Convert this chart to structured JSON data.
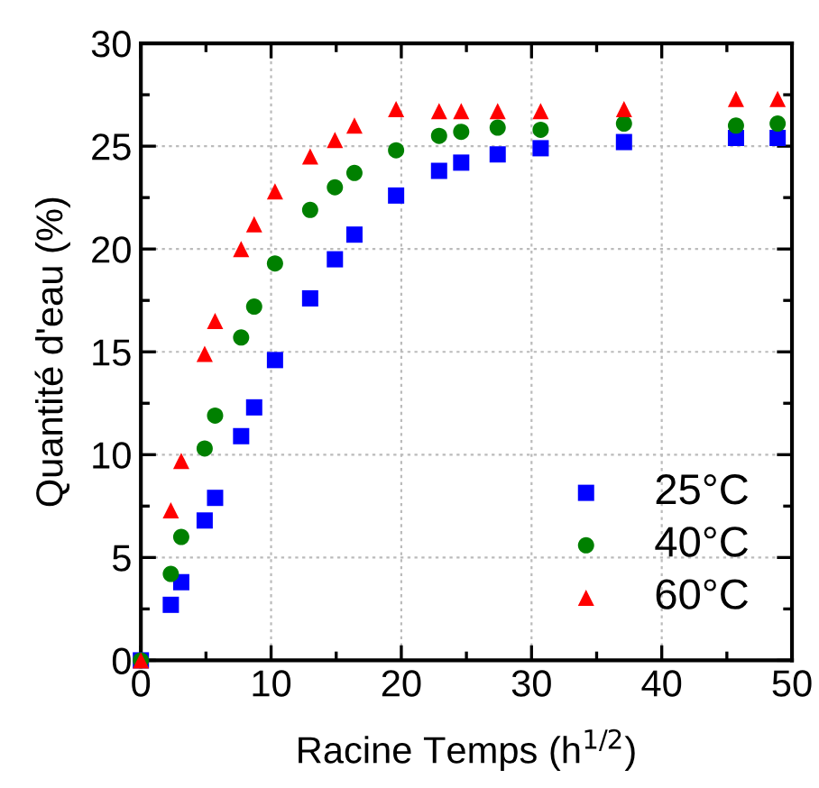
{
  "chart_data": {
    "type": "scatter",
    "xlabel": "Racine Temps (h$^{1/2}$)",
    "ylabel": "Quantité d'eau (%)",
    "x": [
      0,
      2.3,
      3.1,
      4.9,
      5.7,
      7.7,
      8.7,
      10.3,
      13.0,
      14.9,
      16.4,
      19.6,
      22.9,
      24.6,
      27.4,
      30.7,
      37.1,
      45.7,
      48.9
    ],
    "series": [
      {
        "name": "25°C",
        "color": "#0000ff",
        "marker": "square",
        "values": [
          0,
          2.7,
          3.8,
          6.8,
          7.9,
          10.9,
          12.3,
          14.6,
          17.6,
          19.5,
          20.7,
          22.6,
          23.8,
          24.2,
          24.6,
          24.9,
          25.2,
          25.4,
          25.4
        ]
      },
      {
        "name": "40°C",
        "color": "#008000",
        "marker": "circle",
        "values": [
          0,
          4.2,
          6.0,
          10.3,
          11.9,
          15.7,
          17.2,
          19.3,
          21.9,
          23.0,
          23.7,
          24.8,
          25.5,
          25.7,
          25.9,
          25.8,
          26.1,
          26.0,
          26.1
        ]
      },
      {
        "name": "60°C",
        "color": "#ff0000",
        "marker": "triangle",
        "values": [
          0,
          7.3,
          9.7,
          14.9,
          16.5,
          20.0,
          21.2,
          22.8,
          24.5,
          25.3,
          26.0,
          26.8,
          26.7,
          26.7,
          26.7,
          26.7,
          26.8,
          27.3,
          27.3
        ]
      }
    ],
    "xlim": [
      0,
      50
    ],
    "ylim": [
      0,
      30
    ],
    "xticks": [
      0,
      10,
      20,
      30,
      40,
      50
    ],
    "yticks": [
      0,
      5,
      10,
      15,
      20,
      25,
      30
    ],
    "grid": true,
    "legend": "bottom right"
  }
}
